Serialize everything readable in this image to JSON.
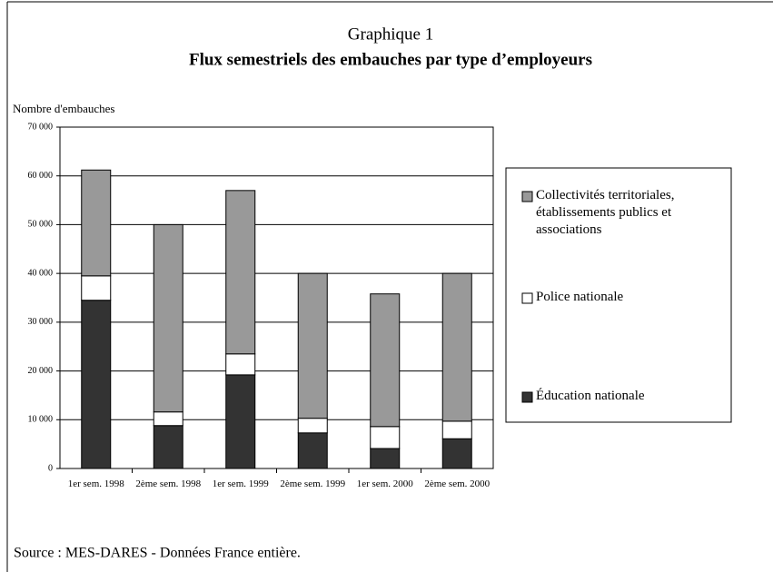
{
  "chart_data": {
    "type": "stacked_bar",
    "title": "Graphique 1",
    "subtitle": "Flux semestriels des embauches par type d’employeurs",
    "y_label": "Nombre d'embauches",
    "source": "Source : MES-DARES - Données France entière.",
    "categories": [
      "1er sem. 1998",
      "2ème sem. 1998",
      "1er sem. 1999",
      "2ème sem. 1999",
      "1er sem. 2000",
      "2ème sem. 2000"
    ],
    "series": [
      {
        "name": "Éducation nationale",
        "color": "#333333",
        "values": [
          34500,
          8800,
          19200,
          7300,
          4100,
          6100
        ]
      },
      {
        "name": "Police nationale",
        "color": "#ffffff",
        "values": [
          5000,
          2800,
          4300,
          3000,
          4500,
          3600
        ]
      },
      {
        "name": "Collectivités territoriales, établissements publics et associations",
        "color": "#999999",
        "values": [
          21700,
          38400,
          33500,
          29700,
          27200,
          30300
        ]
      }
    ],
    "ylim": [
      0,
      70000
    ],
    "yticks": [
      0,
      {
        "value": 10000,
        "label": "10 000"
      },
      {
        "value": 20000,
        "label": "20 000"
      },
      {
        "value": 30000,
        "label": "30 000"
      },
      {
        "value": 40000,
        "label": "40 000"
      },
      {
        "value": 50000,
        "label": "50 000"
      },
      {
        "value": 60000,
        "label": "60 000"
      },
      {
        "value": 70000,
        "label": "70 000"
      }
    ],
    "grid": true
  }
}
